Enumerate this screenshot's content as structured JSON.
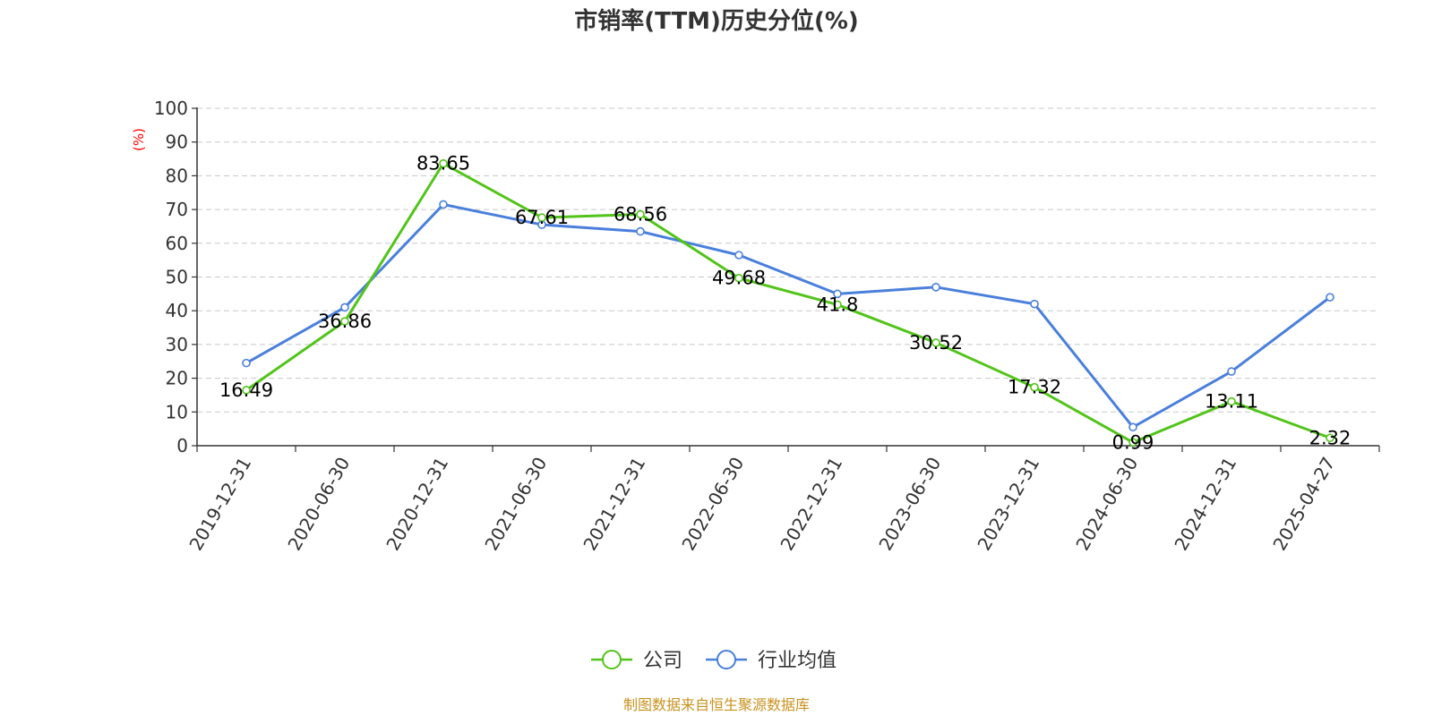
{
  "chart_data": {
    "type": "line",
    "title": "市销率(TTM)历史分位(%)",
    "ylabel": "(%)",
    "xlabel": "",
    "ylim": [
      0,
      100
    ],
    "y_ticks": [
      0,
      10,
      20,
      30,
      40,
      50,
      60,
      70,
      80,
      90,
      100
    ],
    "categories": [
      "2019-12-31",
      "2020-06-30",
      "2020-12-31",
      "2021-06-30",
      "2021-12-31",
      "2022-06-30",
      "2022-12-31",
      "2023-06-30",
      "2023-12-31",
      "2024-06-30",
      "2024-12-31",
      "2025-04-27"
    ],
    "grid": true,
    "legend_position": "bottom-center",
    "series": [
      {
        "name": "公司",
        "color": "#52c41a",
        "values": [
          16.49,
          36.86,
          83.65,
          67.61,
          68.56,
          49.68,
          41.8,
          30.52,
          17.32,
          0.99,
          13.11,
          2.32
        ],
        "labels": [
          "16.49",
          "36.86",
          "83.65",
          "67.61",
          "68.56",
          "49.68",
          "41.8",
          "30.52",
          "17.32",
          "0.99",
          "13.11",
          "2.32"
        ]
      },
      {
        "name": "行业均值",
        "color": "#4a7fdc",
        "values": [
          24.5,
          41.0,
          71.5,
          65.5,
          63.5,
          56.5,
          45.0,
          47.0,
          42.0,
          5.5,
          22.0,
          44.0
        ]
      }
    ],
    "source": "制图数据来自恒生聚源数据库"
  }
}
